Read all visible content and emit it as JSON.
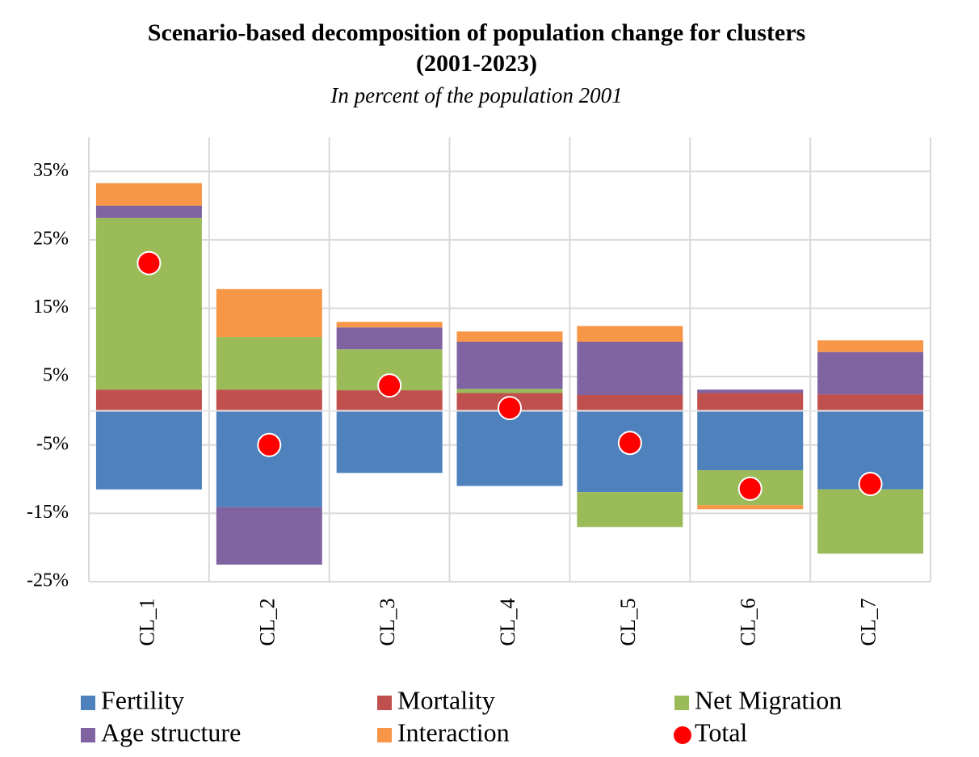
{
  "chart_data": {
    "type": "bar",
    "stacked": true,
    "title": "Scenario-based decomposition of population change for clusters  (2001-2023)",
    "subtitle": "In percent of the population 2001",
    "categories": [
      "CL_1",
      "CL_2",
      "CL_3",
      "CL_4",
      "CL_5",
      "CL_6",
      "CL_7"
    ],
    "series": [
      {
        "name": "Fertility",
        "color": "#4f81bd",
        "values": [
          -11.5,
          -14.1,
          -9.1,
          -11.0,
          -11.9,
          -8.7,
          -11.5
        ]
      },
      {
        "name": "Mortality",
        "color": "#c0504d",
        "values": [
          3.1,
          3.1,
          3.0,
          2.6,
          2.3,
          2.6,
          2.4
        ]
      },
      {
        "name": "Net Migration",
        "color": "#9bbb59",
        "values": [
          25.1,
          7.7,
          6.0,
          0.6,
          -5.1,
          -5.1,
          -9.4
        ]
      },
      {
        "name": "Age structure",
        "color": "#8064a2",
        "values": [
          1.8,
          -8.4,
          3.2,
          6.9,
          7.8,
          0.5,
          6.2
        ]
      },
      {
        "name": "Interaction",
        "color": "#f79646",
        "values": [
          3.3,
          7.0,
          0.8,
          1.5,
          2.3,
          -0.6,
          1.7
        ]
      },
      {
        "name": "Total",
        "color": "#ff0000",
        "mark": "dot",
        "values": [
          21.6,
          -5.0,
          3.7,
          0.4,
          -4.7,
          -11.4,
          -10.7
        ]
      }
    ],
    "ylim": [
      -25,
      40
    ],
    "yticks": [
      {
        "value": -25,
        "label": "-25%"
      },
      {
        "value": -15,
        "label": "-15%"
      },
      {
        "value": -5,
        "label": "-5%"
      },
      {
        "value": 5,
        "label": "5%"
      },
      {
        "value": 15,
        "label": "15%"
      },
      {
        "value": 25,
        "label": "25%"
      },
      {
        "value": 35,
        "label": "35%"
      }
    ],
    "grid": true,
    "legend": "bottom"
  }
}
